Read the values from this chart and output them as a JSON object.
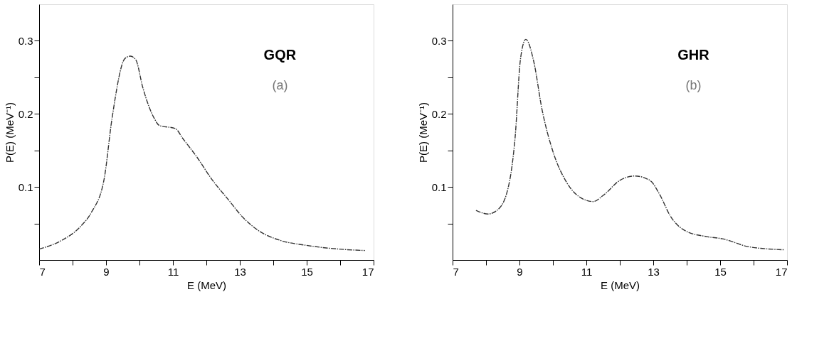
{
  "chart_data": [
    {
      "type": "line",
      "xlabel": "E (MeV)",
      "ylabel": "P(E) (MeV⁻¹)",
      "annotations": [
        "GQR",
        "(a)"
      ],
      "xlim": [
        7,
        17
      ],
      "ylim": [
        0,
        0.35
      ],
      "xticks": [
        7,
        {
          "value": 8,
          "label": null
        },
        9,
        {
          "value": 10,
          "label": null
        },
        11,
        {
          "value": 12,
          "label": null
        },
        13,
        {
          "value": 14,
          "label": null
        },
        15,
        {
          "value": 16,
          "label": null
        },
        17
      ],
      "yticks": [
        {
          "value": 0.05,
          "label": null
        },
        0.1,
        {
          "value": 0.15,
          "label": null
        },
        0.2,
        {
          "value": 0.25,
          "label": null
        },
        0.3
      ],
      "line_style": "dashed",
      "series": [
        {
          "color": "#333333",
          "x": [
            7.0,
            7.68,
            8.24,
            8.56,
            8.94,
            9.18,
            9.57,
            9.73,
            9.89,
            10.1,
            10.44,
            10.6,
            11.07,
            11.3,
            11.7,
            12.17,
            12.65,
            13.1,
            13.6,
            14.2,
            15.0,
            15.95,
            16.74
          ],
          "values": [
            0.015,
            0.027,
            0.046,
            0.065,
            0.11,
            0.194,
            0.276,
            0.279,
            0.274,
            0.236,
            0.194,
            0.184,
            0.18,
            0.166,
            0.142,
            0.11,
            0.083,
            0.058,
            0.039,
            0.027,
            0.02,
            0.015,
            0.013
          ]
        }
      ]
    },
    {
      "type": "line",
      "xlabel": "E (MeV)",
      "ylabel": "P(E) (MeV⁻¹)",
      "annotations": [
        "GHR",
        "(b)"
      ],
      "xlim": [
        7,
        17
      ],
      "ylim": [
        0,
        0.35
      ],
      "xticks": [
        7,
        {
          "value": 8,
          "label": null
        },
        9,
        {
          "value": 10,
          "label": null
        },
        11,
        {
          "value": 12,
          "label": null
        },
        13,
        {
          "value": 14,
          "label": null
        },
        15,
        {
          "value": 16,
          "label": null
        },
        17
      ],
      "yticks": [
        {
          "value": 0.05,
          "label": null
        },
        0.1,
        {
          "value": 0.15,
          "label": null
        },
        0.2,
        {
          "value": 0.25,
          "label": null
        },
        0.3
      ],
      "line_style": "dashed",
      "series": [
        {
          "color": "#333333",
          "x": [
            7.7,
            8.06,
            8.38,
            8.7,
            8.87,
            9.03,
            9.19,
            9.43,
            9.67,
            9.99,
            10.4,
            10.88,
            11.2,
            11.52,
            12.0,
            12.45,
            12.9,
            13.2,
            13.5,
            14.0,
            14.6,
            15.07,
            15.87,
            16.92
          ],
          "values": [
            0.068,
            0.063,
            0.07,
            0.107,
            0.168,
            0.275,
            0.302,
            0.271,
            0.207,
            0.15,
            0.107,
            0.084,
            0.08,
            0.089,
            0.109,
            0.115,
            0.109,
            0.089,
            0.061,
            0.039,
            0.032,
            0.029,
            0.018,
            0.014
          ]
        }
      ]
    }
  ]
}
